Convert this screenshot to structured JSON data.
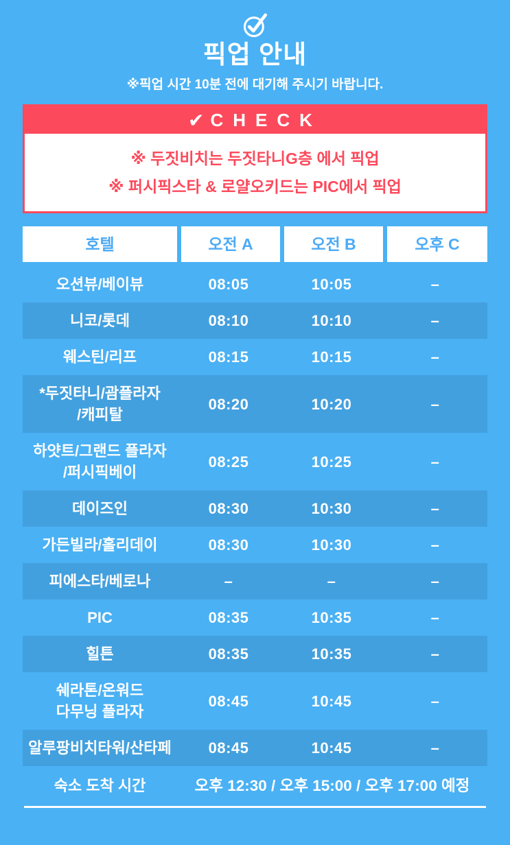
{
  "colors": {
    "background": "#4ab1f4",
    "row_alt": "#43a0de",
    "accent_red": "#fc4a5c",
    "header_text_blue": "#4caaf5",
    "text_white": "#ffffff"
  },
  "header": {
    "icon": "check-circle-icon",
    "title": "픽업 안내",
    "subtitle": "※픽업 시간 10분 전에 대기해 주시기 바랍니다."
  },
  "check_section": {
    "check_glyph": "✔",
    "title": "CHECK",
    "notes": [
      "※ 두짓비치는 두짓타니G층 에서 픽업",
      "※ 퍼시픽스타 & 로얄오키드는 PIC에서 픽업"
    ]
  },
  "schedule": {
    "columns": [
      "호텔",
      "오전 A",
      "오전 B",
      "오후 C"
    ],
    "rows": [
      {
        "hotel": "오션뷰/베이뷰",
        "times": [
          "08:05",
          "10:05",
          "–"
        ]
      },
      {
        "hotel": "니코/롯데",
        "times": [
          "08:10",
          "10:10",
          "–"
        ]
      },
      {
        "hotel": "웨스틴/리프",
        "times": [
          "08:15",
          "10:15",
          "–"
        ]
      },
      {
        "hotel": "*두짓타니/괌플라자\n/캐피탈",
        "times": [
          "08:20",
          "10:20",
          "–"
        ]
      },
      {
        "hotel": "하얏트/그랜드 플라자\n/퍼시픽베이",
        "times": [
          "08:25",
          "10:25",
          "–"
        ]
      },
      {
        "hotel": "데이즈인",
        "times": [
          "08:30",
          "10:30",
          "–"
        ]
      },
      {
        "hotel": "가든빌라/홀리데이",
        "times": [
          "08:30",
          "10:30",
          "–"
        ]
      },
      {
        "hotel": "피에스타/베로나",
        "times": [
          "–",
          "–",
          "–"
        ]
      },
      {
        "hotel": "PIC",
        "times": [
          "08:35",
          "10:35",
          "–"
        ]
      },
      {
        "hotel": "힐튼",
        "times": [
          "08:35",
          "10:35",
          "–"
        ]
      },
      {
        "hotel": "쉐라톤/온워드\n다무닝 플라자",
        "times": [
          "08:45",
          "10:45",
          "–"
        ]
      },
      {
        "hotel": "알루팡비치타워/산타페",
        "times": [
          "08:45",
          "10:45",
          "–"
        ]
      }
    ],
    "arrival": {
      "label": "숙소 도착 시간",
      "value": "오후 12:30 / 오후 15:00 / 오후 17:00 예정"
    }
  }
}
